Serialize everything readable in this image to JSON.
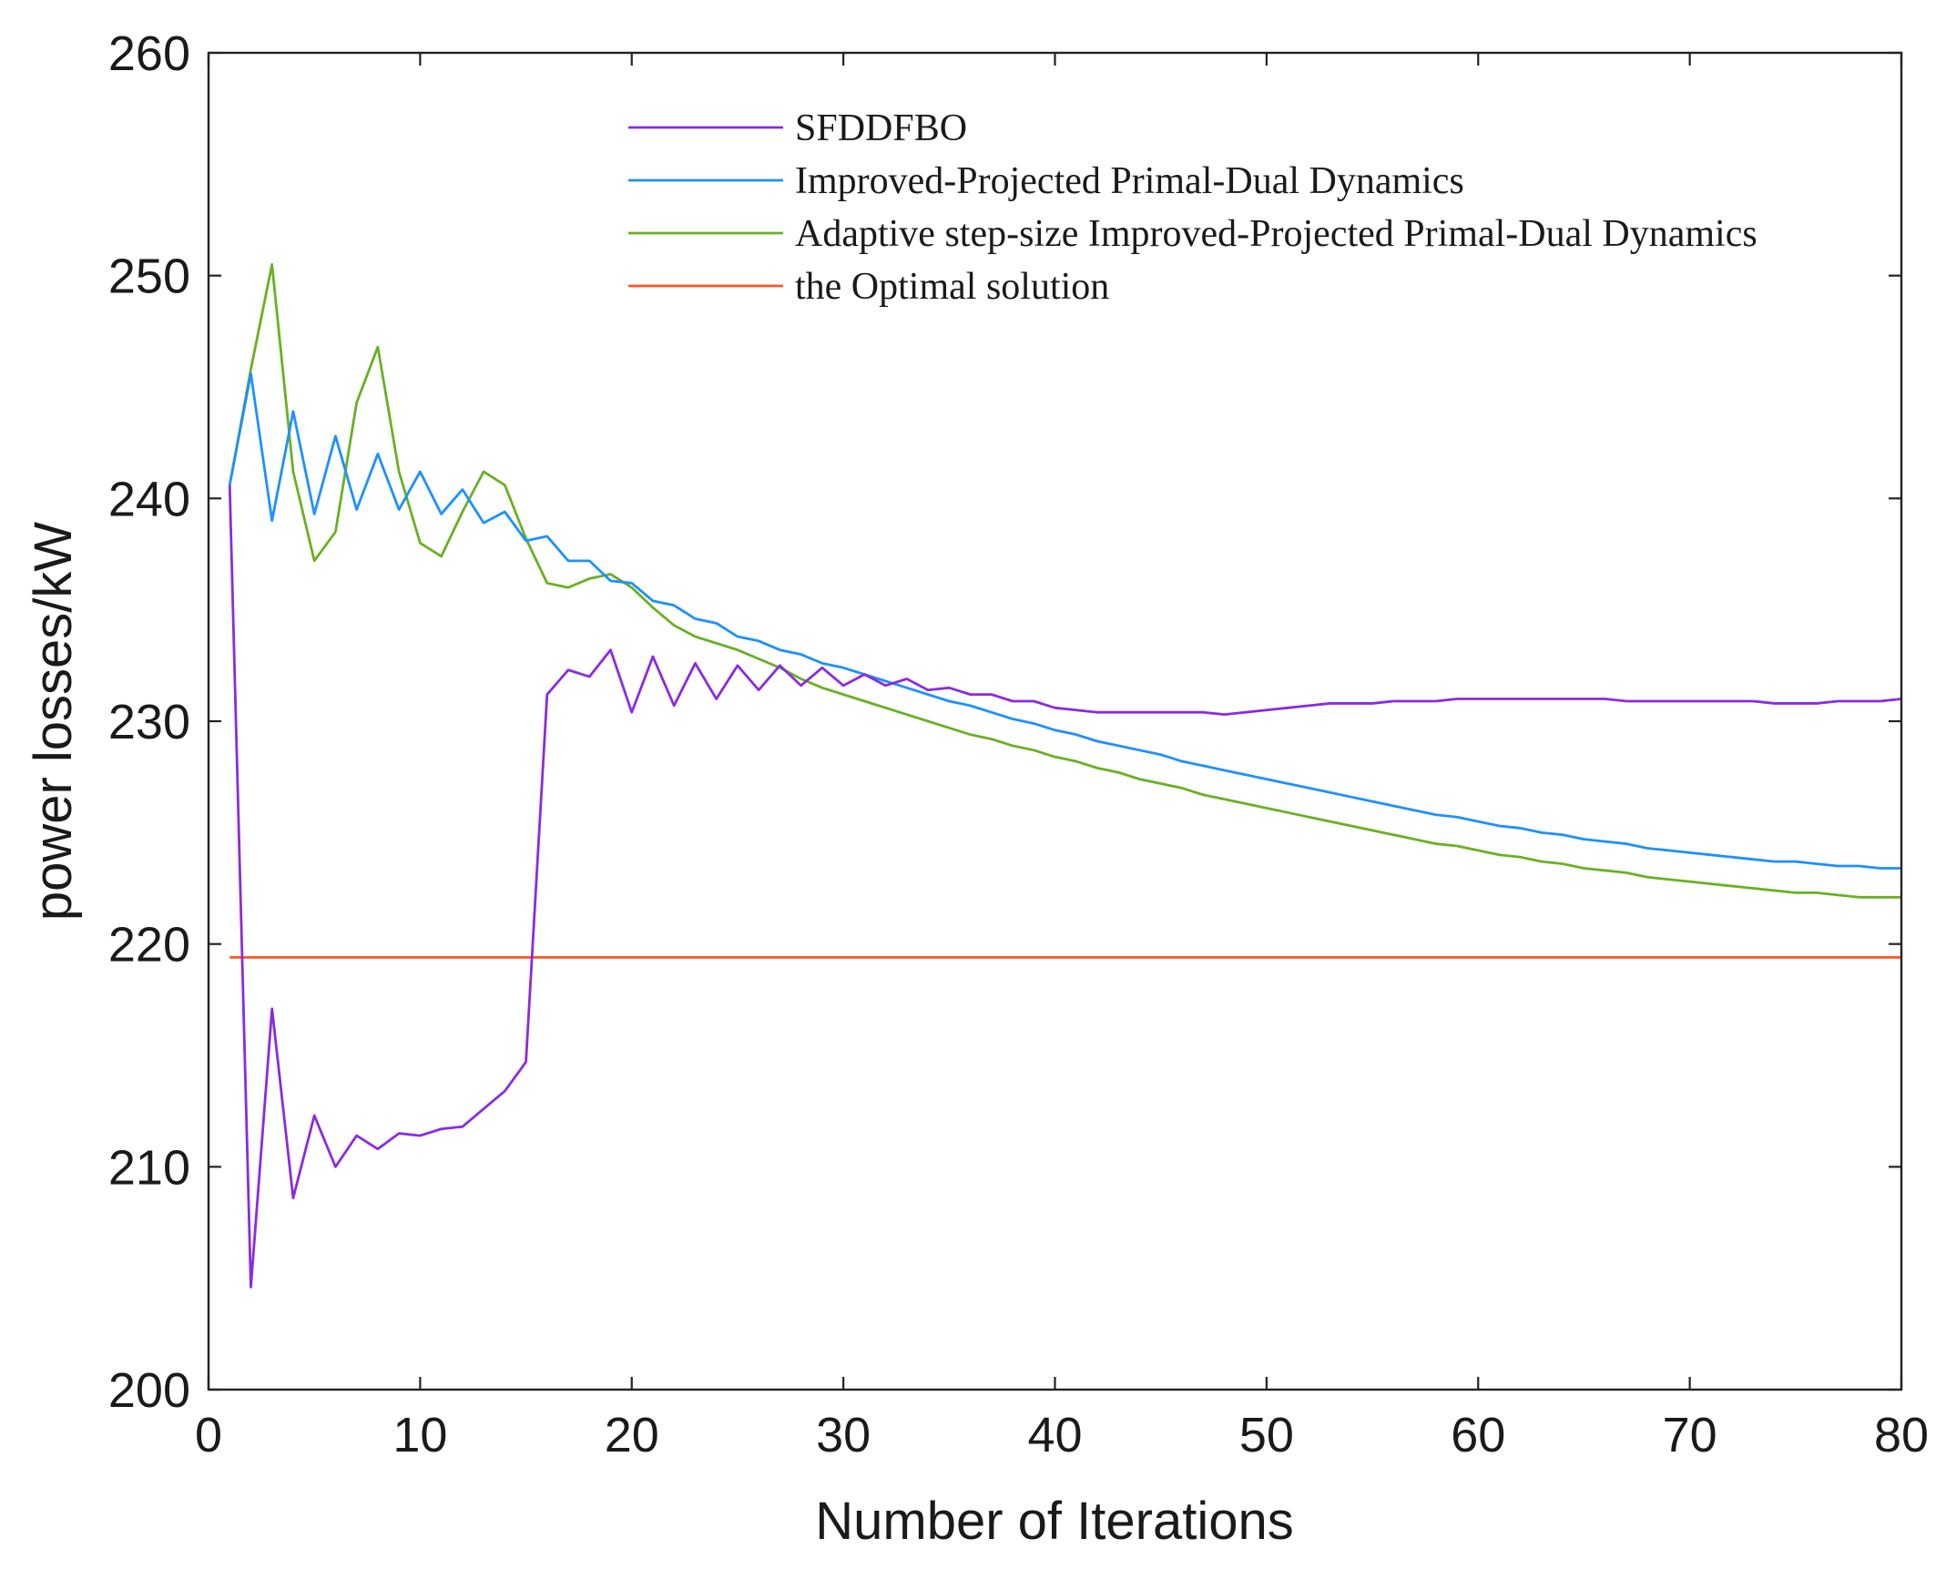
{
  "chart_data": {
    "type": "line",
    "title": "",
    "xlabel": "Number of Iterations",
    "ylabel": "power losses/kW",
    "xlim": [
      0,
      80
    ],
    "ylim": [
      200,
      260
    ],
    "xticks": [
      0,
      10,
      20,
      30,
      40,
      50,
      60,
      70,
      80
    ],
    "yticks": [
      200,
      210,
      220,
      230,
      240,
      250,
      260
    ],
    "grid": false,
    "legend_position": "top-center",
    "series": [
      {
        "name": "SFDDFBO",
        "color": "#8a2be2",
        "x": [
          1,
          2,
          3,
          4,
          5,
          6,
          7,
          8,
          9,
          10,
          11,
          12,
          13,
          14,
          15,
          16,
          17,
          18,
          19,
          20,
          21,
          22,
          23,
          24,
          25,
          26,
          27,
          28,
          29,
          30,
          31,
          32,
          33,
          34,
          35,
          36,
          37,
          38,
          39,
          40,
          41,
          42,
          43,
          44,
          45,
          46,
          47,
          48,
          49,
          50,
          51,
          52,
          53,
          54,
          55,
          56,
          57,
          58,
          59,
          60,
          61,
          62,
          63,
          64,
          65,
          66,
          67,
          68,
          69,
          70,
          71,
          72,
          73,
          74,
          75,
          76,
          77,
          78,
          79,
          80
        ],
        "values": [
          240.6,
          204.6,
          217.1,
          208.6,
          212.3,
          210.0,
          211.4,
          210.8,
          211.5,
          211.4,
          211.7,
          211.8,
          212.6,
          213.4,
          214.7,
          231.2,
          232.3,
          232.0,
          233.2,
          230.4,
          232.9,
          230.7,
          232.6,
          231.0,
          232.5,
          231.4,
          232.5,
          231.6,
          232.4,
          231.6,
          232.1,
          231.6,
          231.9,
          231.4,
          231.5,
          231.2,
          231.2,
          230.9,
          230.9,
          230.6,
          230.5,
          230.4,
          230.4,
          230.4,
          230.4,
          230.4,
          230.4,
          230.3,
          230.4,
          230.5,
          230.6,
          230.7,
          230.8,
          230.8,
          230.8,
          230.9,
          230.9,
          230.9,
          231.0,
          231.0,
          231.0,
          231.0,
          231.0,
          231.0,
          231.0,
          231.0,
          230.9,
          230.9,
          230.9,
          230.9,
          230.9,
          230.9,
          230.9,
          230.8,
          230.8,
          230.8,
          230.9,
          230.9,
          230.9,
          231.0
        ]
      },
      {
        "name": "Improved-Projected Primal-Dual Dynamics",
        "color": "#1e90ff",
        "x": [
          1,
          2,
          3,
          4,
          5,
          6,
          7,
          8,
          9,
          10,
          11,
          12,
          13,
          14,
          15,
          16,
          17,
          18,
          19,
          20,
          21,
          22,
          23,
          24,
          25,
          26,
          27,
          28,
          29,
          30,
          31,
          32,
          33,
          34,
          35,
          36,
          37,
          38,
          39,
          40,
          41,
          42,
          43,
          44,
          45,
          46,
          47,
          48,
          49,
          50,
          51,
          52,
          53,
          54,
          55,
          56,
          57,
          58,
          59,
          60,
          61,
          62,
          63,
          64,
          65,
          66,
          67,
          68,
          69,
          70,
          71,
          72,
          73,
          74,
          75,
          76,
          77,
          78,
          79,
          80
        ],
        "values": [
          240.6,
          245.6,
          239.0,
          243.9,
          239.3,
          242.8,
          239.5,
          242.0,
          239.5,
          241.2,
          239.3,
          240.4,
          238.9,
          239.4,
          238.1,
          238.3,
          237.2,
          237.2,
          236.3,
          236.2,
          235.4,
          235.2,
          234.6,
          234.4,
          233.8,
          233.6,
          233.2,
          233.0,
          232.6,
          232.4,
          232.1,
          231.8,
          231.5,
          231.2,
          230.9,
          230.7,
          230.4,
          230.1,
          229.9,
          229.6,
          229.4,
          229.1,
          228.9,
          228.7,
          228.5,
          228.2,
          228.0,
          227.8,
          227.6,
          227.4,
          227.2,
          227.0,
          226.8,
          226.6,
          226.4,
          226.2,
          226.0,
          225.8,
          225.7,
          225.5,
          225.3,
          225.2,
          225.0,
          224.9,
          224.7,
          224.6,
          224.5,
          224.3,
          224.2,
          224.1,
          224.0,
          223.9,
          223.8,
          223.7,
          223.7,
          223.6,
          223.5,
          223.5,
          223.4,
          223.4
        ]
      },
      {
        "name": "Adaptive step-size Improved-Projected Primal-Dual Dynamics",
        "color": "#6ab023",
        "x": [
          1,
          2,
          3,
          4,
          5,
          6,
          7,
          8,
          9,
          10,
          11,
          12,
          13,
          14,
          15,
          16,
          17,
          18,
          19,
          20,
          21,
          22,
          23,
          24,
          25,
          26,
          27,
          28,
          29,
          30,
          31,
          32,
          33,
          34,
          35,
          36,
          37,
          38,
          39,
          40,
          41,
          42,
          43,
          44,
          45,
          46,
          47,
          48,
          49,
          50,
          51,
          52,
          53,
          54,
          55,
          56,
          57,
          58,
          59,
          60,
          61,
          62,
          63,
          64,
          65,
          66,
          67,
          68,
          69,
          70,
          71,
          72,
          73,
          74,
          75,
          76,
          77,
          78,
          79,
          80
        ],
        "values": [
          240.6,
          245.8,
          250.5,
          241.2,
          237.2,
          238.5,
          244.3,
          246.8,
          241.2,
          238.0,
          237.4,
          239.4,
          241.2,
          240.6,
          238.2,
          236.2,
          236.0,
          236.4,
          236.6,
          236.0,
          235.1,
          234.3,
          233.8,
          233.5,
          233.2,
          232.8,
          232.4,
          231.9,
          231.5,
          231.2,
          230.9,
          230.6,
          230.3,
          230.0,
          229.7,
          229.4,
          229.2,
          228.9,
          228.7,
          228.4,
          228.2,
          227.9,
          227.7,
          227.4,
          227.2,
          227.0,
          226.7,
          226.5,
          226.3,
          226.1,
          225.9,
          225.7,
          225.5,
          225.3,
          225.1,
          224.9,
          224.7,
          224.5,
          224.4,
          224.2,
          224.0,
          223.9,
          223.7,
          223.6,
          223.4,
          223.3,
          223.2,
          223.0,
          222.9,
          222.8,
          222.7,
          222.6,
          222.5,
          222.4,
          222.3,
          222.3,
          222.2,
          222.1,
          222.1,
          222.1
        ]
      },
      {
        "name": "the Optimal solution",
        "color": "#ff5522",
        "x": [
          1,
          80
        ],
        "values": [
          219.4,
          219.4
        ]
      }
    ]
  }
}
